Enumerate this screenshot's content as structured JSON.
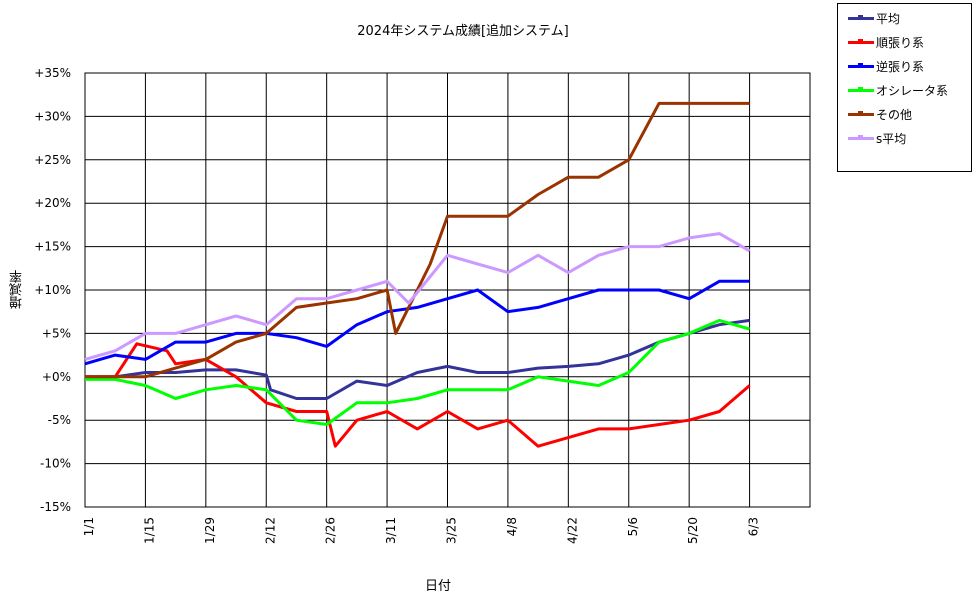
{
  "chart_data": {
    "type": "line",
    "title": "2024年システム成績[追加システム]",
    "xlabel": "日付",
    "ylabel": "増減率",
    "x_ticks": [
      "1/1",
      "1/15",
      "1/29",
      "2/12",
      "2/26",
      "3/11",
      "3/25",
      "4/8",
      "4/22",
      "5/6",
      "5/20",
      "6/3"
    ],
    "y_ticks": [
      "+35%",
      "+30%",
      "+25%",
      "+20%",
      "+15%",
      "+10%",
      "+5%",
      "+0%",
      "-5%",
      "-10%",
      "-15%"
    ],
    "ylim": [
      -15,
      35
    ],
    "grid": true,
    "legend_position": "top-right",
    "x_unit": "days since 1/1",
    "series": [
      {
        "name": "平均",
        "color": "#333399",
        "points": [
          [
            0,
            0
          ],
          [
            7,
            0
          ],
          [
            14,
            0.5
          ],
          [
            21,
            0.5
          ],
          [
            28,
            0.8
          ],
          [
            35,
            0.8
          ],
          [
            42,
            0.2
          ],
          [
            43,
            -1.5
          ],
          [
            49,
            -2.5
          ],
          [
            56,
            -2.5
          ],
          [
            63,
            -0.5
          ],
          [
            70,
            -1
          ],
          [
            77,
            0.5
          ],
          [
            84,
            1.2
          ],
          [
            91,
            0.5
          ],
          [
            98,
            0.5
          ],
          [
            105,
            1
          ],
          [
            112,
            1.2
          ],
          [
            119,
            1.5
          ],
          [
            126,
            2.5
          ],
          [
            133,
            4
          ],
          [
            140,
            5
          ],
          [
            147,
            6
          ],
          [
            154,
            6.5
          ]
        ]
      },
      {
        "name": "順張り系",
        "color": "#ff0000",
        "points": [
          [
            0,
            0
          ],
          [
            7,
            0
          ],
          [
            12,
            3.8
          ],
          [
            19,
            3
          ],
          [
            21,
            1.5
          ],
          [
            28,
            2
          ],
          [
            35,
            0
          ],
          [
            42,
            -3
          ],
          [
            49,
            -4
          ],
          [
            56,
            -4
          ],
          [
            58,
            -8
          ],
          [
            63,
            -5
          ],
          [
            70,
            -4
          ],
          [
            77,
            -6
          ],
          [
            84,
            -4
          ],
          [
            91,
            -6
          ],
          [
            98,
            -5
          ],
          [
            105,
            -8
          ],
          [
            112,
            -7
          ],
          [
            119,
            -6
          ],
          [
            126,
            -6
          ],
          [
            133,
            -5.5
          ],
          [
            140,
            -5
          ],
          [
            147,
            -4
          ],
          [
            154,
            -1
          ]
        ]
      },
      {
        "name": "逆張り系",
        "color": "#0000ff",
        "points": [
          [
            0,
            1.5
          ],
          [
            7,
            2.5
          ],
          [
            14,
            2
          ],
          [
            21,
            4
          ],
          [
            28,
            4
          ],
          [
            35,
            5
          ],
          [
            42,
            5
          ],
          [
            49,
            4.5
          ],
          [
            56,
            3.5
          ],
          [
            63,
            6
          ],
          [
            70,
            7.5
          ],
          [
            77,
            8
          ],
          [
            84,
            9
          ],
          [
            91,
            10
          ],
          [
            98,
            7.5
          ],
          [
            105,
            8
          ],
          [
            112,
            9
          ],
          [
            119,
            10
          ],
          [
            126,
            10
          ],
          [
            133,
            10
          ],
          [
            140,
            9
          ],
          [
            147,
            11
          ],
          [
            154,
            11
          ]
        ]
      },
      {
        "name": "オシレータ系",
        "color": "#00ff00",
        "points": [
          [
            0,
            -0.3
          ],
          [
            7,
            -0.3
          ],
          [
            14,
            -1
          ],
          [
            21,
            -2.5
          ],
          [
            28,
            -1.5
          ],
          [
            35,
            -1
          ],
          [
            42,
            -1.5
          ],
          [
            49,
            -5
          ],
          [
            56,
            -5.5
          ],
          [
            63,
            -3
          ],
          [
            70,
            -3
          ],
          [
            77,
            -2.5
          ],
          [
            84,
            -1.5
          ],
          [
            91,
            -1.5
          ],
          [
            98,
            -1.5
          ],
          [
            105,
            0
          ],
          [
            112,
            -0.5
          ],
          [
            119,
            -1
          ],
          [
            126,
            0.5
          ],
          [
            133,
            4
          ],
          [
            140,
            5
          ],
          [
            147,
            6.5
          ],
          [
            154,
            5.5
          ]
        ]
      },
      {
        "name": "その他",
        "color": "#993300",
        "points": [
          [
            0,
            0
          ],
          [
            7,
            0
          ],
          [
            14,
            0
          ],
          [
            21,
            1
          ],
          [
            28,
            2
          ],
          [
            35,
            4
          ],
          [
            42,
            5
          ],
          [
            49,
            8
          ],
          [
            56,
            8.5
          ],
          [
            63,
            9
          ],
          [
            70,
            10
          ],
          [
            72,
            5
          ],
          [
            77,
            10
          ],
          [
            80,
            13
          ],
          [
            84,
            18.5
          ],
          [
            98,
            18.5
          ],
          [
            105,
            21
          ],
          [
            112,
            23
          ],
          [
            119,
            23
          ],
          [
            126,
            25
          ],
          [
            133,
            31.5
          ],
          [
            154,
            31.5
          ]
        ]
      },
      {
        "name": "s平均",
        "color": "#cc99ff",
        "points": [
          [
            0,
            2
          ],
          [
            7,
            3
          ],
          [
            14,
            5
          ],
          [
            21,
            5
          ],
          [
            28,
            6
          ],
          [
            35,
            7
          ],
          [
            42,
            6
          ],
          [
            49,
            9
          ],
          [
            56,
            9
          ],
          [
            63,
            10
          ],
          [
            70,
            11
          ],
          [
            75,
            8.5
          ],
          [
            84,
            14
          ],
          [
            91,
            13
          ],
          [
            98,
            12
          ],
          [
            105,
            14
          ],
          [
            112,
            12
          ],
          [
            119,
            14
          ],
          [
            126,
            15
          ],
          [
            133,
            15
          ],
          [
            140,
            16
          ],
          [
            147,
            16.5
          ],
          [
            154,
            14.5
          ]
        ]
      }
    ]
  }
}
